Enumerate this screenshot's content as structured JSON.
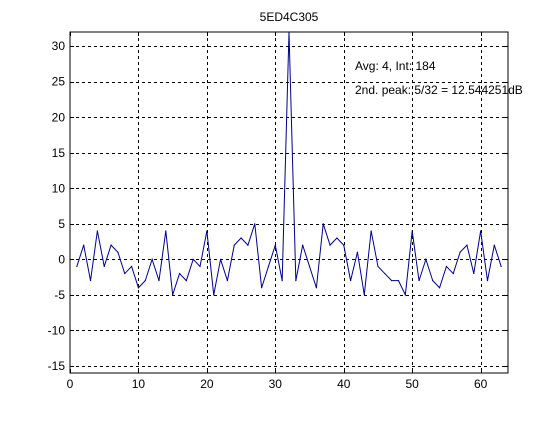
{
  "chart_data": {
    "type": "line",
    "title": "5ED4C305",
    "xlabel": "",
    "ylabel": "",
    "xlim": [
      0,
      64
    ],
    "ylim": [
      -16,
      32
    ],
    "xticks": [
      0,
      10,
      20,
      30,
      40,
      50,
      60
    ],
    "yticks": [
      -15,
      -10,
      -5,
      0,
      5,
      10,
      15,
      20,
      25,
      30
    ],
    "grid": true,
    "line_color": "#00008b",
    "series": [
      {
        "x": [
          1,
          2,
          3,
          4,
          5,
          6,
          7,
          8,
          9,
          10,
          11,
          12,
          13,
          14,
          15,
          16,
          17,
          18,
          19,
          20,
          21,
          22,
          23,
          24,
          25,
          26,
          27,
          28,
          29,
          30,
          31,
          32,
          33,
          34,
          35,
          36,
          37,
          38,
          39,
          40,
          41,
          42,
          43,
          44,
          45,
          46,
          47,
          48,
          49,
          50,
          51,
          52,
          53,
          54,
          55,
          56,
          57,
          58,
          59,
          60,
          61,
          62,
          63
        ],
        "values": [
          -1,
          2,
          -3,
          4,
          -1,
          2,
          1,
          -2,
          -1,
          -4,
          -3,
          0,
          -3,
          4,
          -5,
          -2,
          -3,
          0,
          -1,
          4,
          -5,
          0,
          -3,
          2,
          3,
          2,
          5,
          -4,
          -1,
          2,
          -3,
          32,
          -3,
          2,
          -1,
          -4,
          5,
          2,
          3,
          2,
          -3,
          1,
          -5,
          4,
          -1,
          -2,
          -3,
          -3,
          -5,
          4,
          -3,
          0,
          -3,
          -4,
          -1,
          -2,
          1,
          2,
          -2,
          4,
          -3,
          2,
          -1
        ]
      }
    ],
    "annotations": [
      {
        "text": "Avg: 4, Int: 184"
      },
      {
        "text": "2nd. peak: 5/32 = 12.544251dB"
      }
    ]
  }
}
